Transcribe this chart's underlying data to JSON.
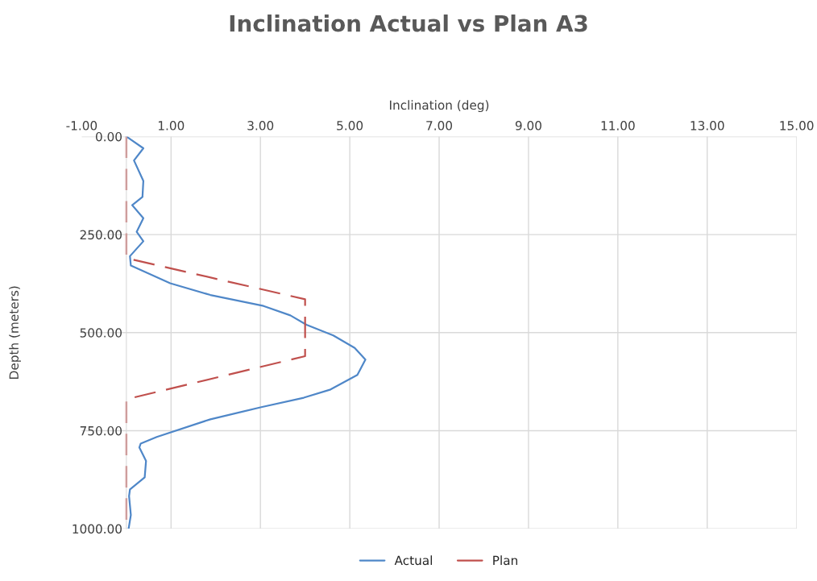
{
  "chart_data": {
    "type": "line",
    "title": "Inclination Actual vs Plan A3",
    "xlabel": "Inclination (deg)",
    "ylabel": "Depth (meters)",
    "xlim": [
      -1,
      15
    ],
    "xticks": [
      {
        "value": -1,
        "label": "-1.00"
      },
      {
        "value": 1,
        "label": "1.00"
      },
      {
        "value": 3,
        "label": "3.00"
      },
      {
        "value": 5,
        "label": "5.00"
      },
      {
        "value": 7,
        "label": "7.00"
      },
      {
        "value": 9,
        "label": "9.00"
      },
      {
        "value": 11,
        "label": "11.00"
      },
      {
        "value": 13,
        "label": "13.00"
      },
      {
        "value": 15,
        "label": "15.00"
      }
    ],
    "ylim": [
      1000,
      0
    ],
    "yticks": [
      {
        "value": 0,
        "label": "0.00"
      },
      {
        "value": 250,
        "label": "250.00"
      },
      {
        "value": 500,
        "label": "500.00"
      },
      {
        "value": 750,
        "label": "750.00"
      },
      {
        "value": 1000,
        "label": "1000.00"
      }
    ],
    "grid": true,
    "legend": "bottom",
    "series": [
      {
        "name": "Actual",
        "color": "#4f87c8",
        "line_style": "solid",
        "x": [
          0,
          0.38,
          0.17,
          0.38,
          0.36,
          0.13,
          0.38,
          0.23,
          0.38,
          0.08,
          0.1,
          0.98,
          1.88,
          3.07,
          3.67,
          4.03,
          4.63,
          5.11,
          5.35,
          5.17,
          4.57,
          3.97,
          3.02,
          1.88,
          0.68,
          0.32,
          0.29,
          0.44,
          0.41,
          0.08,
          0.06,
          0.1,
          0.05
        ],
        "values": [
          0,
          30,
          61,
          113,
          154,
          175,
          208,
          243,
          267,
          305,
          329,
          374,
          404,
          432,
          456,
          480,
          507,
          539,
          569,
          608,
          645,
          666,
          690,
          721,
          766,
          783,
          793,
          827,
          869,
          900,
          917,
          965,
          1000
        ]
      },
      {
        "name": "Plan",
        "color": "#c0504d",
        "line_style": "dashed",
        "x": [
          0,
          0,
          4,
          4,
          0,
          0
        ],
        "values": [
          0,
          310,
          415,
          560,
          670,
          1000
        ]
      }
    ]
  }
}
